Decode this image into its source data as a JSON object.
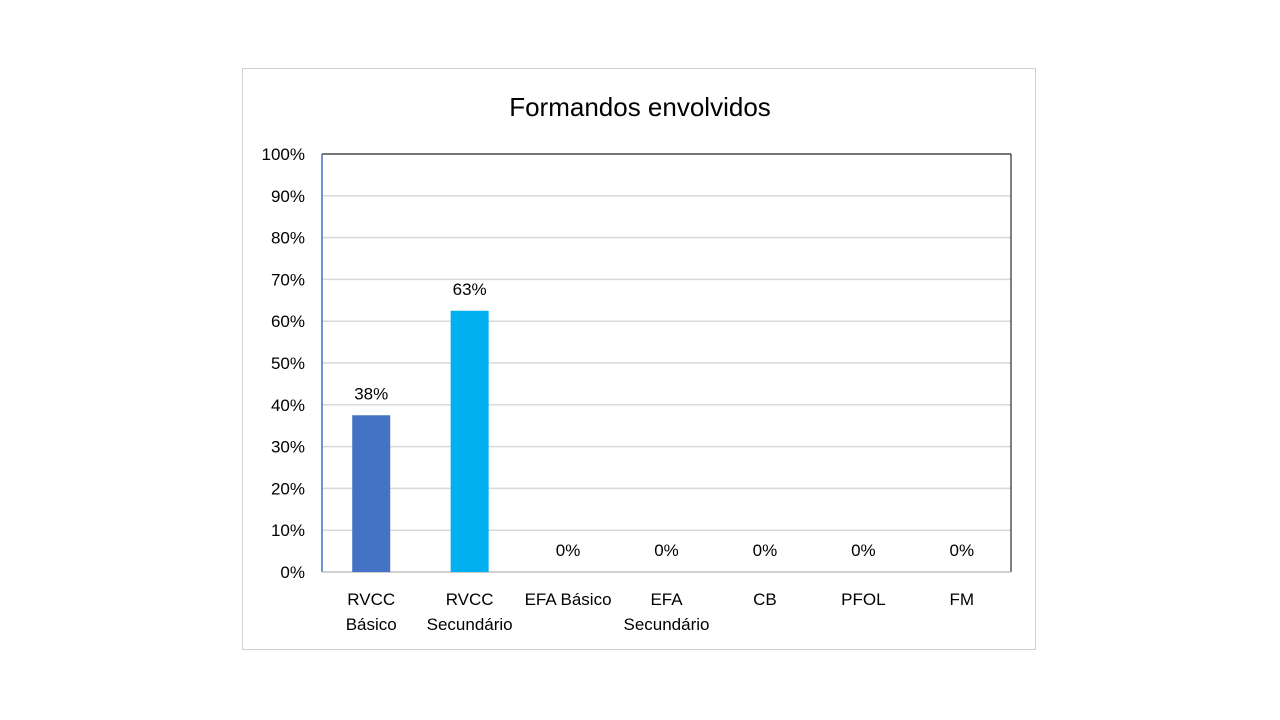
{
  "chart_data": {
    "type": "bar",
    "title": "Formandos envolvidos",
    "xlabel": "",
    "ylabel": "",
    "categories": [
      [
        "RVCC",
        "Básico"
      ],
      [
        "RVCC",
        "Secundário"
      ],
      [
        "EFA Básico"
      ],
      [
        "EFA",
        "Secundário"
      ],
      [
        "CB"
      ],
      [
        "PFOL"
      ],
      [
        "FM"
      ]
    ],
    "values": [
      37.5,
      62.5,
      0,
      0,
      0,
      0,
      0
    ],
    "data_labels": [
      "38%",
      "63%",
      "0%",
      "0%",
      "0%",
      "0%",
      "0%"
    ],
    "bar_colors": [
      "#4472C4",
      "#00B0F0",
      "#4472C4",
      "#4472C4",
      "#4472C4",
      "#4472C4",
      "#4472C4"
    ],
    "ylim": [
      0,
      100
    ],
    "yticks": [
      "0%",
      "10%",
      "20%",
      "30%",
      "40%",
      "50%",
      "60%",
      "70%",
      "80%",
      "90%",
      "100%"
    ],
    "grid": true,
    "legend": "none"
  }
}
